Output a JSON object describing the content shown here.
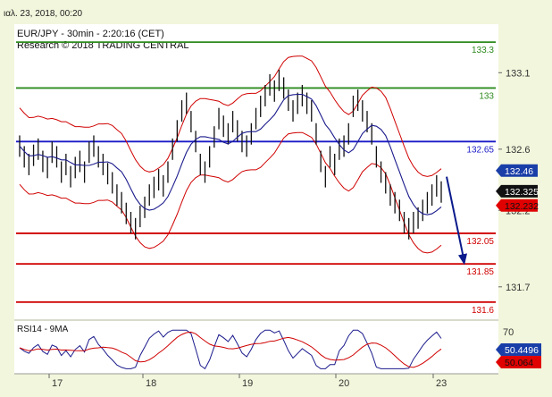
{
  "header_date": "ιαλ. 23, 2018, 00:20",
  "chart_data": {
    "type": "line",
    "title": "EUR/JPY - 30min - 2:20:16 (CET)",
    "subtitle": "Research © 2018 TRADING CENTRAL",
    "price_axis": {
      "ylim": [
        131.5,
        133.4
      ],
      "ticks": [
        "133.1",
        "132.6",
        "132.2",
        "131.7"
      ],
      "tick_values": [
        133.1,
        132.6,
        132.2,
        131.7
      ]
    },
    "x_tick_labels": [
      "17",
      "18",
      "19",
      "20",
      "23"
    ],
    "levels": [
      {
        "label": "133.3",
        "value": 133.3,
        "color": "#2e8b1f"
      },
      {
        "label": "133",
        "value": 133.0,
        "color": "#2e8b1f"
      },
      {
        "label": "132.65",
        "value": 132.65,
        "color": "#1a1ac8"
      },
      {
        "label": "132.05",
        "value": 132.05,
        "color": "#d00000"
      },
      {
        "label": "131.85",
        "value": 131.85,
        "color": "#d00000"
      },
      {
        "label": "131.6",
        "value": 131.6,
        "color": "#d00000"
      }
    ],
    "price_tags": [
      {
        "label": "132.46",
        "value": 132.46,
        "bg": "#1a3ea8",
        "fg": "#ffffff"
      },
      {
        "label": "132.325",
        "value": 132.325,
        "bg": "#111111",
        "fg": "#ffffff"
      },
      {
        "label": "132.232",
        "value": 132.232,
        "bg": "#e00000",
        "fg": "#111111"
      }
    ],
    "price_series": [
      132.62,
      132.55,
      132.5,
      132.56,
      132.6,
      132.52,
      132.48,
      132.58,
      132.55,
      132.45,
      132.5,
      132.42,
      132.48,
      132.52,
      132.45,
      132.58,
      132.62,
      132.55,
      132.5,
      132.44,
      132.38,
      132.3,
      132.25,
      132.18,
      132.12,
      132.08,
      132.16,
      132.22,
      132.3,
      132.35,
      132.4,
      132.36,
      132.45,
      132.6,
      132.72,
      132.85,
      132.9,
      132.78,
      132.65,
      132.5,
      132.45,
      132.55,
      132.68,
      132.8,
      132.75,
      132.7,
      132.78,
      132.72,
      132.65,
      132.62,
      132.7,
      132.8,
      132.88,
      132.95,
      133.02,
      132.98,
      133.05,
      133.0,
      132.92,
      132.85,
      132.9,
      132.95,
      132.9,
      132.85,
      132.7,
      132.52,
      132.42,
      132.55,
      132.5,
      132.6,
      132.62,
      132.7,
      132.88,
      132.92,
      132.85,
      132.78,
      132.7,
      132.55,
      132.45,
      132.38,
      132.3,
      132.25,
      132.2,
      132.12,
      132.08,
      132.12,
      132.15,
      132.2,
      132.25,
      132.3,
      132.36,
      132.32
    ],
    "series": [
      {
        "name": "RSI14",
        "color": "#1a1a8c"
      },
      {
        "name": "9MA",
        "color": "#d00000"
      }
    ],
    "rsi_panel": {
      "title": "RSI14 - 9MA",
      "tick_label": "70",
      "tags": [
        {
          "label": "50.4496",
          "value": 50.45,
          "bg": "#1a3ea8",
          "fg": "#ffffff"
        },
        {
          "label": "50.064",
          "value": 50.06,
          "bg": "#e00000",
          "fg": "#111111"
        }
      ]
    },
    "projection": {
      "from_value": 132.42,
      "to_value": 131.86
    }
  }
}
